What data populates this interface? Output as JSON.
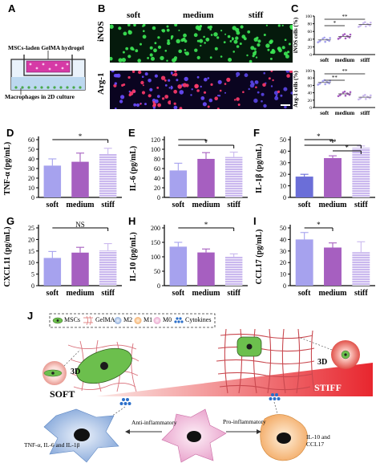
{
  "panels": {
    "A": {
      "label": "A",
      "top_text": "MSCs-laden GelMA hydrogel",
      "bottom_text": "Macrophages in 2D culture"
    },
    "B": {
      "label": "B",
      "columns": [
        "soft",
        "medium",
        "stiff"
      ],
      "rows": [
        "iNOS",
        "Arg-1"
      ]
    },
    "C": {
      "label": "C"
    },
    "D": {
      "label": "D"
    },
    "E": {
      "label": "E"
    },
    "F": {
      "label": "F"
    },
    "G": {
      "label": "G"
    },
    "H": {
      "label": "H"
    },
    "I": {
      "label": "I"
    },
    "J": {
      "label": "J",
      "legend": [
        "MSCs",
        "GelMA",
        "M2",
        "M1",
        "M0",
        "Cytokines"
      ],
      "left_label": "SOFT",
      "right_label": "STIFF",
      "three_d": "3D",
      "anti": "Anti-inflammatory",
      "pro": "Pro-inflammatory",
      "left_cytokines": "TNF-α, IL-6 and IL-1β",
      "right_cytokines": "IL-10 and CCL17"
    }
  },
  "colors": {
    "soft": "#a6a2ee",
    "medium": "#a65fc0",
    "stiff": "#cab8ee",
    "soft_F": "#6b6ed8",
    "gradient_end": "#e8262e"
  },
  "chart_data": [
    {
      "panel": "C-top",
      "type": "scatter",
      "ylabel": "iNOS cells (%)",
      "categories": [
        "soft",
        "medium",
        "stiff"
      ],
      "values": [
        38,
        47,
        78
      ],
      "yticks": [
        0,
        20,
        40,
        60,
        80,
        100
      ],
      "ylim": [
        0,
        100
      ],
      "significance": [
        {
          "from": "soft",
          "to": "medium",
          "mark": "*"
        },
        {
          "from": "soft",
          "to": "stiff",
          "mark": "**"
        }
      ]
    },
    {
      "panel": "C-bottom",
      "type": "scatter",
      "ylabel": "Arg-1 cells (%)",
      "categories": [
        "soft",
        "medium",
        "stiff"
      ],
      "values": [
        68,
        37,
        28
      ],
      "yticks": [
        0,
        20,
        40,
        60,
        80,
        100
      ],
      "ylim": [
        0,
        100
      ],
      "significance": [
        {
          "from": "soft",
          "to": "medium",
          "mark": "**"
        },
        {
          "from": "soft",
          "to": "stiff",
          "mark": "**"
        }
      ]
    },
    {
      "panel": "D",
      "type": "bar",
      "ylabel": "TNF-α (pg/mL)",
      "categories": [
        "soft",
        "medium",
        "stiff"
      ],
      "values": [
        33,
        37,
        45
      ],
      "errors": [
        7,
        9,
        6
      ],
      "yticks": [
        0,
        10,
        20,
        30,
        40,
        50,
        60
      ],
      "ylim": [
        0,
        60
      ],
      "significance": [
        {
          "from": "soft",
          "to": "stiff",
          "mark": "*"
        }
      ]
    },
    {
      "panel": "E",
      "type": "bar",
      "ylabel": "IL-6 (pg/mL)",
      "categories": [
        "soft",
        "medium",
        "stiff"
      ],
      "values": [
        56,
        80,
        84
      ],
      "errors": [
        15,
        13,
        10
      ],
      "yticks": [
        0,
        20,
        40,
        60,
        80,
        100,
        120
      ],
      "ylim": [
        0,
        120
      ],
      "significance": [
        {
          "from": "soft",
          "to": "medium",
          "mark": ""
        },
        {
          "from": "soft",
          "to": "stiff",
          "mark": "*"
        }
      ]
    },
    {
      "panel": "F",
      "type": "bar",
      "ylabel": "IL-1β (pg/mL)",
      "categories": [
        "soft",
        "medium",
        "stiff"
      ],
      "values": [
        18,
        34,
        43
      ],
      "errors": [
        2,
        2,
        1.5
      ],
      "yticks": [
        0,
        10,
        20,
        30,
        40,
        50
      ],
      "ylim": [
        0,
        50
      ],
      "significance": [
        {
          "from": "soft",
          "to": "medium",
          "mark": "*"
        },
        {
          "from": "soft",
          "to": "stiff",
          "mark": "**"
        },
        {
          "from": "medium",
          "to": "stiff",
          "mark": "*"
        }
      ]
    },
    {
      "panel": "G",
      "type": "bar",
      "ylabel": "CXCL11 (pg/mL)",
      "categories": [
        "soft",
        "medium",
        "stiff"
      ],
      "values": [
        12,
        14.3,
        15.2
      ],
      "errors": [
        2.8,
        2.3,
        3
      ],
      "yticks": [
        0,
        5,
        10,
        15,
        20,
        25
      ],
      "ylim": [
        0,
        25
      ],
      "significance": [
        {
          "from": "soft",
          "to": "stiff",
          "mark": "NS"
        }
      ]
    },
    {
      "panel": "H",
      "type": "bar",
      "ylabel": "IL-10 (pg/mL)",
      "categories": [
        "soft",
        "medium",
        "stiff"
      ],
      "values": [
        135,
        115,
        100
      ],
      "errors": [
        15,
        12,
        10
      ],
      "yticks": [
        0,
        50,
        100,
        150,
        200
      ],
      "ylim": [
        0,
        200
      ],
      "significance": [
        {
          "from": "soft",
          "to": "stiff",
          "mark": "*"
        }
      ]
    },
    {
      "panel": "I",
      "type": "bar",
      "ylabel": "CCL17 (pg/mL)",
      "categories": [
        "soft",
        "medium",
        "stiff"
      ],
      "values": [
        40,
        33,
        29
      ],
      "errors": [
        6,
        4,
        9
      ],
      "yticks": [
        0,
        10,
        20,
        30,
        40,
        50
      ],
      "ylim": [
        0,
        50
      ],
      "significance": [
        {
          "from": "soft",
          "to": "medium",
          "mark": "*"
        }
      ]
    }
  ]
}
